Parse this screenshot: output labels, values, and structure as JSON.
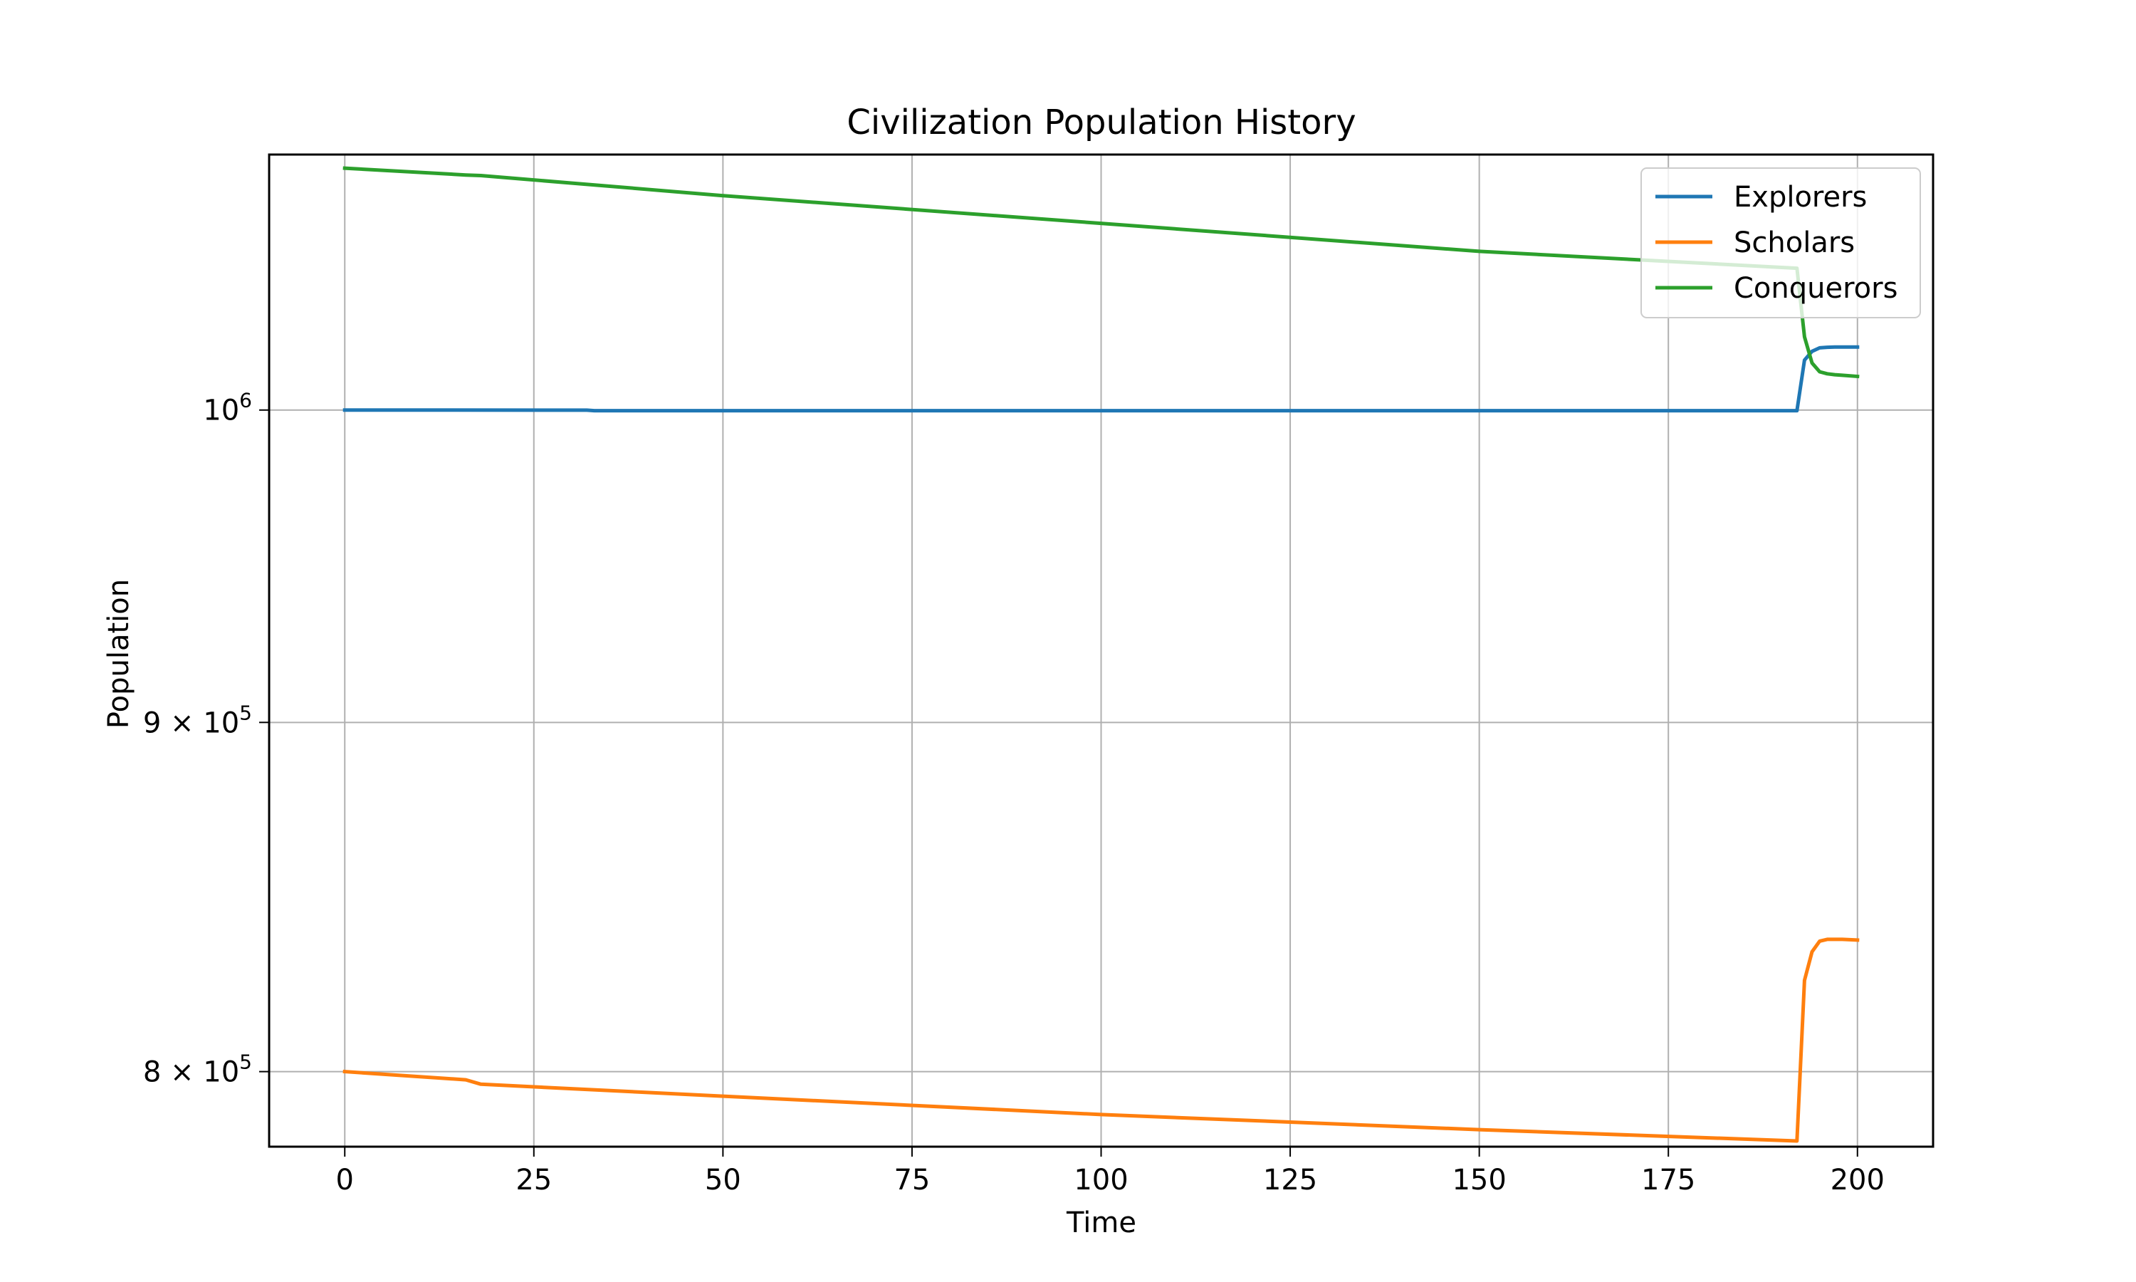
{
  "chart_data": {
    "type": "line",
    "title": "Civilization Population History",
    "xlabel": "Time",
    "ylabel": "Population",
    "y_scale": "log",
    "xlim": [
      -10,
      210
    ],
    "ylim": [
      780000,
      1090000
    ],
    "grid": true,
    "legend_position": "top-right",
    "x_ticks": [
      0,
      25,
      50,
      75,
      100,
      125,
      150,
      175,
      200
    ],
    "y_ticks": [
      {
        "value": 800000,
        "base": "8 × 10",
        "exp": "5"
      },
      {
        "value": 900000,
        "base": "9 × 10",
        "exp": "5"
      },
      {
        "value": 1000000,
        "base": "10",
        "exp": "6"
      }
    ],
    "series": [
      {
        "name": "Explorers",
        "color": "#1f77b4",
        "x": [
          0,
          32,
          33,
          192,
          193,
          194,
          195,
          196,
          197,
          198,
          199,
          200
        ],
        "y": [
          1000000,
          999950,
          999800,
          999800,
          1017000,
          1020000,
          1021200,
          1021400,
          1021500,
          1021500,
          1021500,
          1021500
        ]
      },
      {
        "name": "Scholars",
        "color": "#ff7f0e",
        "x": [
          0,
          16,
          18,
          50,
          100,
          150,
          192,
          193,
          194,
          195,
          196,
          197,
          198,
          200
        ],
        "y": [
          800000,
          797800,
          796600,
          793400,
          788500,
          784500,
          781500,
          825000,
          833000,
          836000,
          836500,
          836500,
          836500,
          836300
        ]
      },
      {
        "name": "Conquerors",
        "color": "#2ca02c",
        "x": [
          0,
          16,
          18,
          50,
          100,
          150,
          192,
          193,
          194,
          195,
          196,
          197,
          198,
          200
        ],
        "y": [
          1085000,
          1082500,
          1082300,
          1075000,
          1065000,
          1055000,
          1049000,
          1025000,
          1016000,
          1013000,
          1012300,
          1012000,
          1011800,
          1011400
        ]
      }
    ]
  }
}
